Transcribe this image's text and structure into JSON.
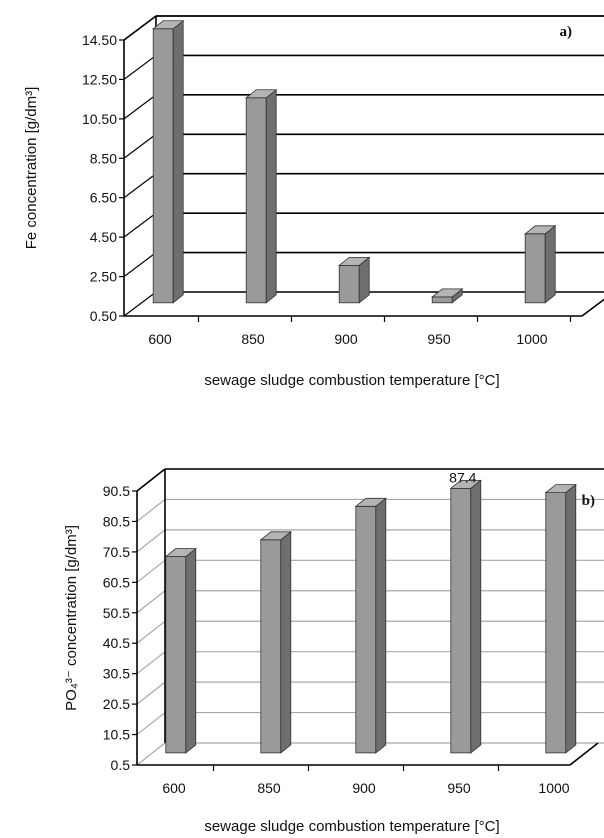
{
  "chart_data": [
    {
      "type": "bar",
      "panel": "a)",
      "categories": [
        "600",
        "850",
        "900",
        "950",
        "1000"
      ],
      "values": [
        14.4,
        10.9,
        2.4,
        0.8,
        4.0
      ],
      "yticks": [
        "0.50",
        "2.50",
        "4.50",
        "6.50",
        "8.50",
        "10.50",
        "12.50",
        "14.50"
      ],
      "ylim": [
        0.5,
        14.5
      ],
      "grid_color": "#000000",
      "bar_color": "#9a9a9a",
      "xlabel": "sewage sludge combustion temperature [°C]",
      "ylabel": "Fe concentration [g/dm³]",
      "data_labels": []
    },
    {
      "type": "bar",
      "panel": "b)",
      "categories": [
        "600",
        "850",
        "900",
        "950",
        "1000"
      ],
      "values": [
        65.0,
        70.5,
        81.5,
        87.4,
        86.0
      ],
      "yticks": [
        "0.5",
        "10.5",
        "20.5",
        "30.5",
        "40.5",
        "50.5",
        "60.5",
        "70.5",
        "80.5",
        "90.5"
      ],
      "ylim": [
        0.5,
        90.5
      ],
      "grid_color": "#a8a8a8",
      "bar_color": "#9a9a9a",
      "xlabel": "sewage sludge combustion temperature [°C]",
      "ylabel": "PO₄³⁻ concentration [g/dm³]",
      "data_labels": [
        {
          "index": 3,
          "text": "87.4"
        }
      ]
    }
  ]
}
